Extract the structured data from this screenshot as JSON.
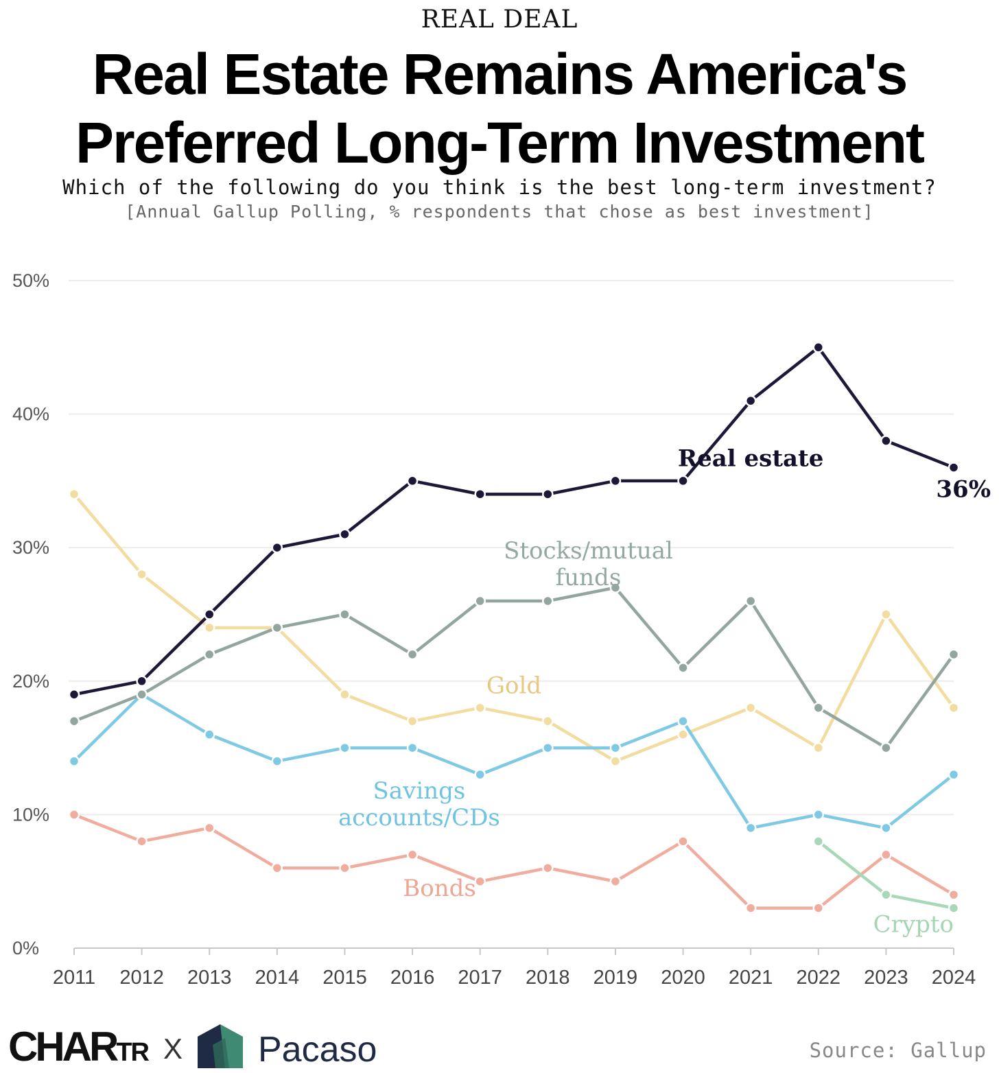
{
  "header": {
    "kicker": "REAL DEAL",
    "title_line1": "Real Estate Remains America's",
    "title_line2": "Preferred Long-Term Investment",
    "subtitle": "Which of the following do you think is the best long-term investment?",
    "note": "[Annual Gallup Polling, % respondents that chose as best investment]"
  },
  "footer": {
    "brand1": "CHARTR",
    "brand1_big": "CHAR",
    "brand1_small": "TR",
    "cross": "X",
    "brand2": "Pacaso",
    "source": "Source: Gallup"
  },
  "chart_data": {
    "type": "line",
    "title": "Real Estate Remains America's Preferred Long-Term Investment",
    "subtitle": "Which of the following do you think is the best long-term investment?",
    "ylabel": "",
    "xlabel": "",
    "ylim": [
      0,
      50
    ],
    "yticks": [
      "0%",
      "10%",
      "20%",
      "30%",
      "40%",
      "50%"
    ],
    "ytick_values": [
      0,
      10,
      20,
      30,
      40,
      50
    ],
    "grid": true,
    "x": [
      2011,
      2012,
      2013,
      2014,
      2015,
      2016,
      2017,
      2018,
      2019,
      2020,
      2021,
      2022,
      2023,
      2024
    ],
    "xticks": [
      "2011",
      "2012",
      "2013",
      "2014",
      "2015",
      "2016",
      "2017",
      "2018",
      "2019",
      "2020",
      "2021",
      "2022",
      "2023",
      "2024"
    ],
    "end_annotation": "36%",
    "series": [
      {
        "name": "Gold",
        "label_lines": [
          "Gold"
        ],
        "color": "#f2dc9f",
        "label_color": "#e6c87e",
        "values": [
          34,
          28,
          24,
          24,
          19,
          17,
          18,
          17,
          14,
          16,
          18,
          15,
          25,
          18
        ]
      },
      {
        "name": "Savings accounts/CDs",
        "label_lines": [
          "Savings",
          "accounts/CDs"
        ],
        "color": "#7ec9e3",
        "label_color": "#6ec3e3",
        "values": [
          14,
          19,
          16,
          14,
          15,
          15,
          13,
          15,
          15,
          17,
          9,
          10,
          9,
          13
        ]
      },
      {
        "name": "Bonds",
        "label_lines": [
          "Bonds"
        ],
        "color": "#f0ad9e",
        "label_color": "#eea592",
        "values": [
          10,
          8,
          9,
          6,
          6,
          7,
          5,
          6,
          5,
          8,
          3,
          3,
          7,
          4
        ]
      },
      {
        "name": "Crypto",
        "label_lines": [
          "Crypto"
        ],
        "color": "#a9d8b8",
        "label_color": "#a3d6b2",
        "values": [
          null,
          null,
          null,
          null,
          null,
          null,
          null,
          null,
          null,
          null,
          null,
          8,
          4,
          3
        ]
      },
      {
        "name": "Stocks/mutual funds",
        "label_lines": [
          "Stocks/mutual",
          "funds"
        ],
        "color": "#92a69d",
        "label_color": "#93a89e",
        "values": [
          17,
          19,
          22,
          24,
          25,
          22,
          26,
          26,
          27,
          21,
          26,
          18,
          15,
          22
        ]
      },
      {
        "name": "Real estate",
        "label_lines": [
          "Real estate"
        ],
        "color": "#1c1838",
        "label_color": "#12102a",
        "values": [
          19,
          20,
          25,
          30,
          31,
          35,
          34,
          34,
          35,
          35,
          41,
          45,
          38,
          36
        ]
      }
    ]
  }
}
